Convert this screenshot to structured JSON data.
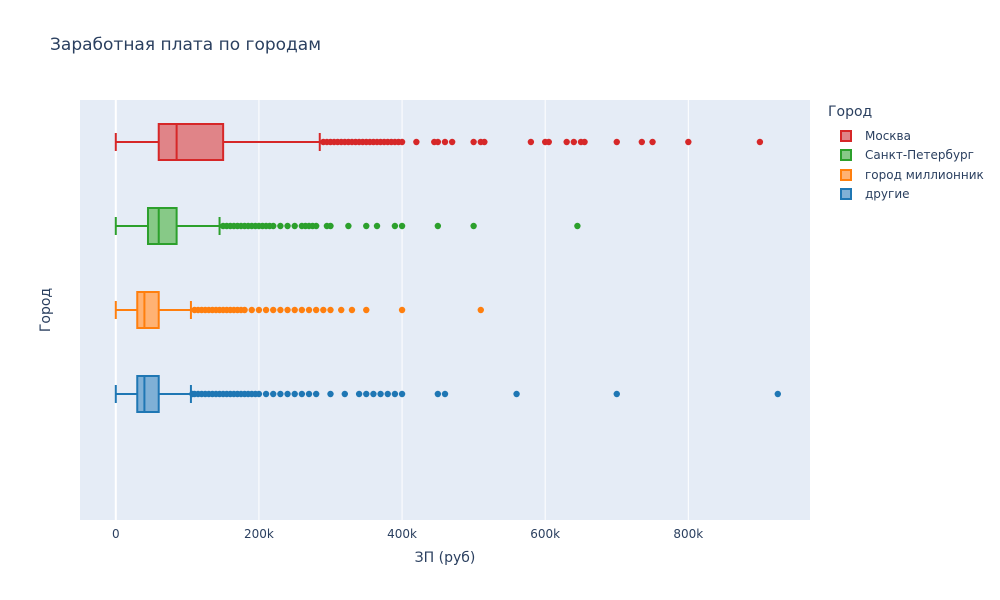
{
  "chart_data": {
    "type": "box",
    "title": "Заработная плата по городам",
    "xlabel": "ЗП (руб)",
    "ylabel": "Город",
    "xlim": [
      -50000,
      970000
    ],
    "x_ticks": [
      0,
      200000,
      400000,
      600000,
      800000
    ],
    "x_tick_labels": [
      "0",
      "200k",
      "400k",
      "600k",
      "800k"
    ],
    "legend_title": "Город",
    "legend_position": "top-right",
    "grid": true,
    "series": [
      {
        "name": "Москва",
        "color": "#d62728",
        "fill": "#e08488",
        "min": 0,
        "q1": 60000,
        "median": 85000,
        "q3": 150000,
        "upper_fence": 285000,
        "outliers": [
          290000,
          295000,
          300000,
          305000,
          310000,
          315000,
          320000,
          325000,
          330000,
          335000,
          340000,
          345000,
          350000,
          355000,
          360000,
          365000,
          370000,
          375000,
          380000,
          385000,
          390000,
          395000,
          400000,
          420000,
          445000,
          450000,
          460000,
          470000,
          500000,
          510000,
          515000,
          580000,
          600000,
          605000,
          630000,
          640000,
          650000,
          655000,
          700000,
          735000,
          750000,
          800000,
          900000
        ]
      },
      {
        "name": "Санкт-Петербург",
        "color": "#2ca02c",
        "fill": "#87c987",
        "min": 0,
        "q1": 45000,
        "median": 60000,
        "q3": 85000,
        "upper_fence": 145000,
        "outliers": [
          150000,
          155000,
          160000,
          165000,
          170000,
          175000,
          180000,
          185000,
          190000,
          195000,
          200000,
          205000,
          210000,
          215000,
          220000,
          230000,
          240000,
          250000,
          260000,
          265000,
          270000,
          275000,
          280000,
          295000,
          300000,
          325000,
          350000,
          365000,
          390000,
          400000,
          450000,
          500000,
          645000
        ]
      },
      {
        "name": "город миллионник",
        "color": "#ff7f0e",
        "fill": "#ffb273",
        "min": 0,
        "q1": 30000,
        "median": 40000,
        "q3": 60000,
        "upper_fence": 105000,
        "outliers": [
          110000,
          115000,
          120000,
          125000,
          130000,
          135000,
          140000,
          145000,
          150000,
          155000,
          160000,
          165000,
          170000,
          175000,
          180000,
          190000,
          200000,
          210000,
          220000,
          230000,
          240000,
          250000,
          260000,
          270000,
          280000,
          290000,
          300000,
          315000,
          330000,
          350000,
          400000,
          510000
        ]
      },
      {
        "name": "другие",
        "color": "#1f77b4",
        "fill": "#7fb0d6",
        "min": 0,
        "q1": 30000,
        "median": 40000,
        "q3": 60000,
        "upper_fence": 105000,
        "outliers": [
          107000,
          110000,
          115000,
          120000,
          125000,
          130000,
          135000,
          140000,
          145000,
          150000,
          155000,
          160000,
          165000,
          170000,
          175000,
          180000,
          185000,
          190000,
          195000,
          200000,
          210000,
          220000,
          230000,
          240000,
          250000,
          260000,
          270000,
          280000,
          300000,
          320000,
          340000,
          350000,
          360000,
          370000,
          380000,
          390000,
          400000,
          450000,
          460000,
          560000,
          700000,
          925000
        ]
      }
    ]
  }
}
